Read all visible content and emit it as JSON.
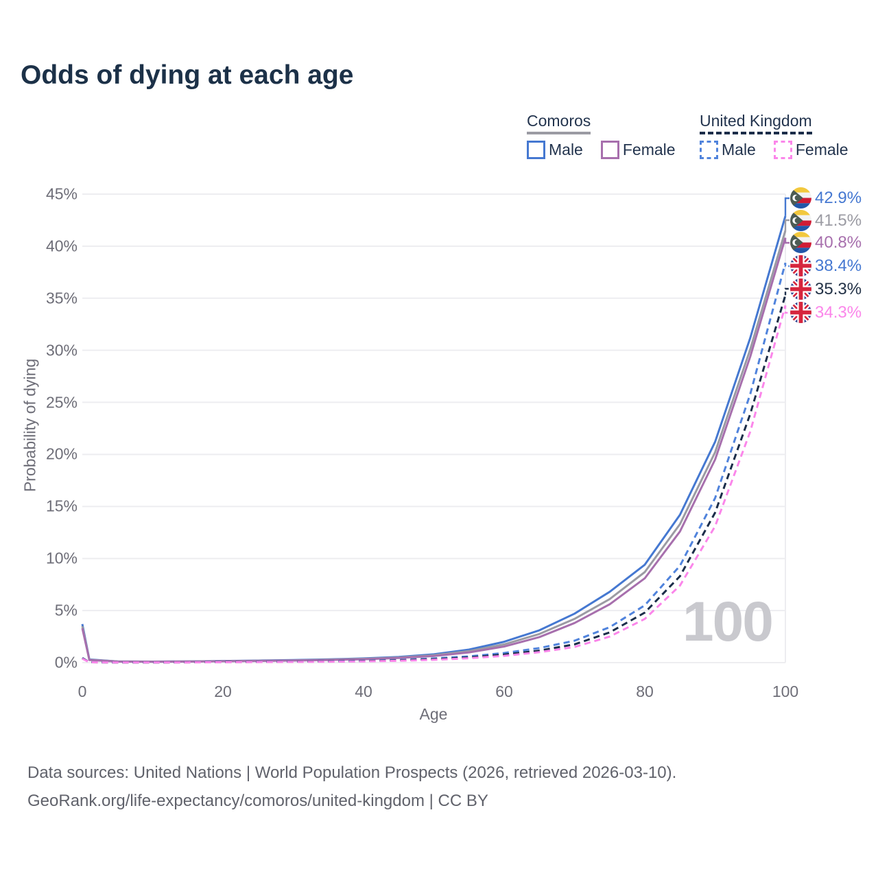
{
  "title": "Odds of dying at each age",
  "legend": {
    "groups": [
      {
        "label": "Comoros",
        "line_style": "solid",
        "underline_color": "#9b9ba3",
        "items": [
          {
            "label": "Male",
            "color": "#4578d1"
          },
          {
            "label": "Female",
            "color": "#a76fad"
          }
        ]
      },
      {
        "label": "United Kingdom",
        "line_style": "dashed",
        "underline_color": "#1b2d49",
        "items": [
          {
            "label": "Male",
            "color": "#5083dc"
          },
          {
            "label": "Female",
            "color": "#fb86ea"
          }
        ]
      }
    ]
  },
  "axes": {
    "y_title": "Probability of dying",
    "x_title": "Age",
    "y_ticks": [
      "45%",
      "40%",
      "35%",
      "30%",
      "25%",
      "20%",
      "15%",
      "10%",
      "5%",
      "0%"
    ],
    "x_ticks": [
      "0",
      "20",
      "40",
      "60",
      "80",
      "100"
    ]
  },
  "watermark": "100",
  "end_labels": [
    {
      "value": "42.9%",
      "flag": "comoros",
      "color": "#4578d1"
    },
    {
      "value": "41.5%",
      "flag": "comoros",
      "color": "#9b9ba3"
    },
    {
      "value": "40.8%",
      "flag": "comoros",
      "color": "#a76fad"
    },
    {
      "value": "38.4%",
      "flag": "uk",
      "color": "#4578d1"
    },
    {
      "value": "35.3%",
      "flag": "uk",
      "color": "#233247"
    },
    {
      "value": "34.3%",
      "flag": "uk",
      "color": "#fb86ea"
    }
  ],
  "footer": {
    "line1": "Data sources: United Nations | World Population Prospects (2026, retrieved 2026-03-10).",
    "line2": "GeoRank.org/life-expectancy/comoros/united-kingdom | CC BY"
  },
  "chart_data": {
    "type": "line",
    "title": "Odds of dying at each age",
    "xlabel": "Age",
    "ylabel": "Probability of dying",
    "xlim": [
      0,
      100
    ],
    "ylim": [
      0,
      45
    ],
    "y_unit": "%",
    "grid": "horizontal",
    "legend_position": "top-right",
    "x": [
      0,
      1,
      5,
      10,
      15,
      20,
      25,
      30,
      35,
      40,
      45,
      50,
      55,
      60,
      65,
      70,
      75,
      80,
      85,
      90,
      95,
      100
    ],
    "series": [
      {
        "name": "Comoros Male",
        "color": "#4578d1",
        "dash": "solid",
        "values": [
          3.7,
          0.3,
          0.12,
          0.1,
          0.12,
          0.16,
          0.2,
          0.25,
          0.31,
          0.4,
          0.55,
          0.8,
          1.25,
          2.0,
          3.1,
          4.7,
          6.8,
          9.4,
          14.2,
          21.2,
          31.2,
          42.9
        ],
        "end_label": "42.9%"
      },
      {
        "name": "Comoros Both sexes",
        "color": "#9b9ba3",
        "dash": "solid",
        "values": [
          3.5,
          0.27,
          0.11,
          0.09,
          0.11,
          0.14,
          0.18,
          0.22,
          0.28,
          0.36,
          0.49,
          0.71,
          1.1,
          1.75,
          2.75,
          4.2,
          6.1,
          8.7,
          13.3,
          20.2,
          30.1,
          41.5
        ],
        "end_label": "41.5%"
      },
      {
        "name": "Comoros Female",
        "color": "#a76fad",
        "dash": "solid",
        "values": [
          3.3,
          0.25,
          0.1,
          0.08,
          0.1,
          0.13,
          0.16,
          0.2,
          0.25,
          0.32,
          0.44,
          0.63,
          0.98,
          1.55,
          2.45,
          3.8,
          5.6,
          8.1,
          12.6,
          19.5,
          29.4,
          40.8
        ],
        "end_label": "40.8%"
      },
      {
        "name": "United Kingdom Male",
        "color": "#5083dc",
        "dash": "dashed",
        "values": [
          0.45,
          0.04,
          0.01,
          0.01,
          0.03,
          0.06,
          0.08,
          0.1,
          0.13,
          0.18,
          0.26,
          0.4,
          0.6,
          0.92,
          1.4,
          2.1,
          3.4,
          5.5,
          9.3,
          15.8,
          25.8,
          38.4
        ],
        "end_label": "38.4%"
      },
      {
        "name": "United Kingdom Both sexes",
        "color": "#1b2d49",
        "dash": "dashed",
        "values": [
          0.42,
          0.035,
          0.01,
          0.01,
          0.025,
          0.05,
          0.065,
          0.085,
          0.11,
          0.15,
          0.22,
          0.33,
          0.5,
          0.77,
          1.15,
          1.75,
          2.9,
          4.8,
          8.3,
          14.4,
          23.9,
          35.3
        ],
        "end_label": "35.3%"
      },
      {
        "name": "United Kingdom Female",
        "color": "#fb86ea",
        "dash": "dashed",
        "values": [
          0.38,
          0.03,
          0.01,
          0.01,
          0.02,
          0.04,
          0.05,
          0.065,
          0.085,
          0.12,
          0.18,
          0.27,
          0.42,
          0.65,
          1.0,
          1.5,
          2.5,
          4.2,
          7.4,
          13.1,
          22.2,
          34.3
        ],
        "end_label": "34.3%"
      }
    ]
  }
}
